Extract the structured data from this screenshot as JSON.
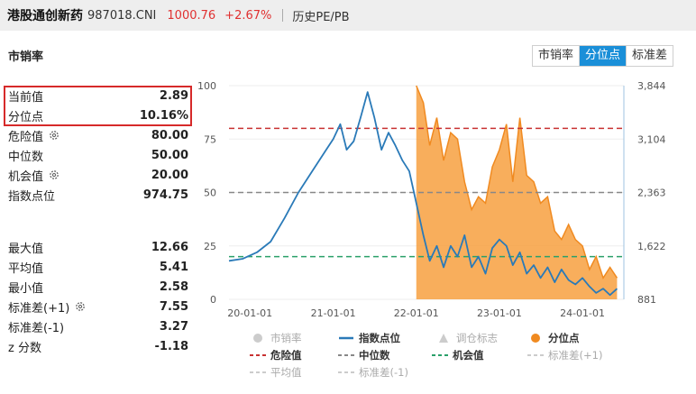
{
  "header": {
    "name": "港股通创新药",
    "code": "987018.CNI",
    "price": "1000.76",
    "change": "+2.67%",
    "history_link": "历史PE/PB"
  },
  "section_title": "市销率",
  "tabs": [
    {
      "label": "市销率",
      "active": false
    },
    {
      "label": "分位点",
      "active": true
    },
    {
      "label": "标准差",
      "active": false
    }
  ],
  "stats_top": [
    {
      "label": "当前值",
      "value": "2.89",
      "gear": false
    },
    {
      "label": "分位点",
      "value": "10.16%",
      "gear": false
    },
    {
      "label": "危险值",
      "value": "80.00",
      "gear": true
    },
    {
      "label": "中位数",
      "value": "50.00",
      "gear": false
    },
    {
      "label": "机会值",
      "value": "20.00",
      "gear": true
    },
    {
      "label": "指数点位",
      "value": "974.75",
      "gear": false
    }
  ],
  "stats_bottom": [
    {
      "label": "最大值",
      "value": "12.66",
      "gear": false
    },
    {
      "label": "平均值",
      "value": "5.41",
      "gear": false
    },
    {
      "label": "最小值",
      "value": "2.58",
      "gear": false
    },
    {
      "label": "标准差(+1)",
      "value": "7.55",
      "gear": true
    },
    {
      "label": "标准差(-1)",
      "value": "3.27",
      "gear": false
    },
    {
      "label": "z 分数",
      "value": "-1.18",
      "gear": false
    }
  ],
  "colors": {
    "accent": "#1a8fd8",
    "price_up": "#e03030",
    "highlight_border": "#d62a2a",
    "index_line": "#2a7ab8",
    "percentile_fill": "#f7a040",
    "percentile_line": "#f08a20",
    "danger": "#c83232",
    "median": "#888888",
    "opportunity": "#2aa06a",
    "grid": "#eeeeee"
  },
  "chart_data": {
    "type": "area",
    "x_tick_labels": [
      "20-01-01",
      "21-01-01",
      "22-01-01",
      "23-01-01",
      "24-01-01"
    ],
    "left_axis": {
      "ticks": [
        0,
        25,
        50,
        75,
        100
      ],
      "ylim": [
        0,
        100
      ]
    },
    "right_axis": {
      "ticks": [
        "881",
        "1,622",
        "2,363",
        "3,104",
        "3,844"
      ],
      "ylim": [
        881,
        3844
      ]
    },
    "reference_lines": [
      {
        "name": "危险值",
        "value": 80,
        "color": "#c83232"
      },
      {
        "name": "中位数",
        "value": 50,
        "color": "#888888"
      },
      {
        "name": "机会值",
        "value": 20,
        "color": "#2aa06a"
      }
    ],
    "series": [
      {
        "name": "指数点位",
        "axis": "left",
        "x": [
          "2019-10",
          "2019-12",
          "2020-02",
          "2020-04",
          "2020-06",
          "2020-08",
          "2020-10",
          "2020-12",
          "2021-01",
          "2021-02",
          "2021-03",
          "2021-04",
          "2021-05",
          "2021-06",
          "2021-07",
          "2021-08",
          "2021-09",
          "2021-10",
          "2021-11",
          "2021-12",
          "2022-01",
          "2022-02",
          "2022-03",
          "2022-04",
          "2022-05",
          "2022-06",
          "2022-07",
          "2022-08",
          "2022-09",
          "2022-10",
          "2022-11",
          "2022-12",
          "2023-01",
          "2023-02",
          "2023-03",
          "2023-04",
          "2023-05",
          "2023-06",
          "2023-07",
          "2023-08",
          "2023-09",
          "2023-10",
          "2023-11",
          "2023-12",
          "2024-01",
          "2024-02",
          "2024-03",
          "2024-04",
          "2024-05",
          "2024-06"
        ],
        "values": [
          18,
          19,
          22,
          27,
          38,
          50,
          60,
          70,
          75,
          82,
          70,
          74,
          85,
          97,
          85,
          70,
          78,
          72,
          65,
          60,
          45,
          30,
          18,
          25,
          15,
          25,
          20,
          30,
          15,
          20,
          12,
          24,
          28,
          25,
          16,
          22,
          12,
          16,
          10,
          15,
          8,
          14,
          9,
          7,
          10,
          6,
          3,
          5,
          2,
          5
        ]
      },
      {
        "name": "分位点",
        "axis": "left",
        "x": [
          "2022-01",
          "2022-02",
          "2022-03",
          "2022-04",
          "2022-05",
          "2022-06",
          "2022-07",
          "2022-08",
          "2022-09",
          "2022-10",
          "2022-11",
          "2022-12",
          "2023-01",
          "2023-02",
          "2023-03",
          "2023-04",
          "2023-05",
          "2023-06",
          "2023-07",
          "2023-08",
          "2023-09",
          "2023-10",
          "2023-11",
          "2023-12",
          "2024-01",
          "2024-02",
          "2024-03",
          "2024-04",
          "2024-05",
          "2024-06"
        ],
        "values": [
          100,
          92,
          72,
          85,
          65,
          78,
          75,
          55,
          42,
          48,
          45,
          62,
          70,
          82,
          55,
          85,
          58,
          55,
          45,
          48,
          32,
          28,
          35,
          28,
          25,
          14,
          20,
          10,
          15,
          10
        ]
      }
    ],
    "legend": [
      {
        "name": "市销率",
        "symbol": "circle",
        "color": "#cccccc"
      },
      {
        "name": "指数点位",
        "symbol": "line",
        "color": "#2a7ab8"
      },
      {
        "name": "调仓标志",
        "symbol": "triangle",
        "color": "#cccccc"
      },
      {
        "name": "分位点",
        "symbol": "circle",
        "color": "#f08a20"
      },
      {
        "name": "危险值",
        "symbol": "dash",
        "color": "#c83232"
      },
      {
        "name": "中位数",
        "symbol": "dash",
        "color": "#888888"
      },
      {
        "name": "机会值",
        "symbol": "dash",
        "color": "#2aa06a"
      },
      {
        "name": "标准差(+1)",
        "symbol": "dash",
        "color": "#cccccc"
      },
      {
        "name": "平均值",
        "symbol": "dash",
        "color": "#cccccc"
      },
      {
        "name": "标准差(-1)",
        "symbol": "dash",
        "color": "#cccccc"
      }
    ],
    "legend_placement": "bottom",
    "grid": true
  }
}
